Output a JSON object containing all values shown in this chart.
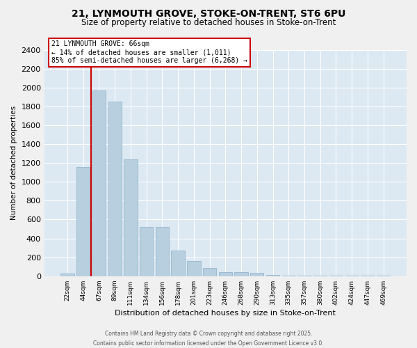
{
  "title_line1": "21, LYNMOUTH GROVE, STOKE-ON-TRENT, ST6 6PU",
  "title_line2": "Size of property relative to detached houses in Stoke-on-Trent",
  "xlabel": "Distribution of detached houses by size in Stoke-on-Trent",
  "ylabel": "Number of detached properties",
  "categories": [
    "22sqm",
    "44sqm",
    "67sqm",
    "89sqm",
    "111sqm",
    "134sqm",
    "156sqm",
    "178sqm",
    "201sqm",
    "223sqm",
    "246sqm",
    "268sqm",
    "290sqm",
    "313sqm",
    "335sqm",
    "357sqm",
    "380sqm",
    "402sqm",
    "424sqm",
    "447sqm",
    "469sqm"
  ],
  "values": [
    25,
    1160,
    1970,
    1850,
    1240,
    520,
    520,
    275,
    160,
    85,
    45,
    45,
    35,
    15,
    8,
    5,
    5,
    5,
    3,
    3,
    3
  ],
  "bar_color": "#b8cfe0",
  "bar_edgecolor": "#8aafc8",
  "vline_color": "#cc0000",
  "annotation_text": "21 LYNMOUTH GROVE: 66sqm\n← 14% of detached houses are smaller (1,011)\n85% of semi-detached houses are larger (6,268) →",
  "annotation_box_edgecolor": "#cc0000",
  "ylim": [
    0,
    2400
  ],
  "yticks": [
    0,
    200,
    400,
    600,
    800,
    1000,
    1200,
    1400,
    1600,
    1800,
    2000,
    2200,
    2400
  ],
  "plot_bg_color": "#dce8f2",
  "fig_bg_color": "#f0f0f0",
  "grid_color": "#ffffff",
  "footer_line1": "Contains HM Land Registry data © Crown copyright and database right 2025.",
  "footer_line2": "Contains public sector information licensed under the Open Government Licence v3.0."
}
